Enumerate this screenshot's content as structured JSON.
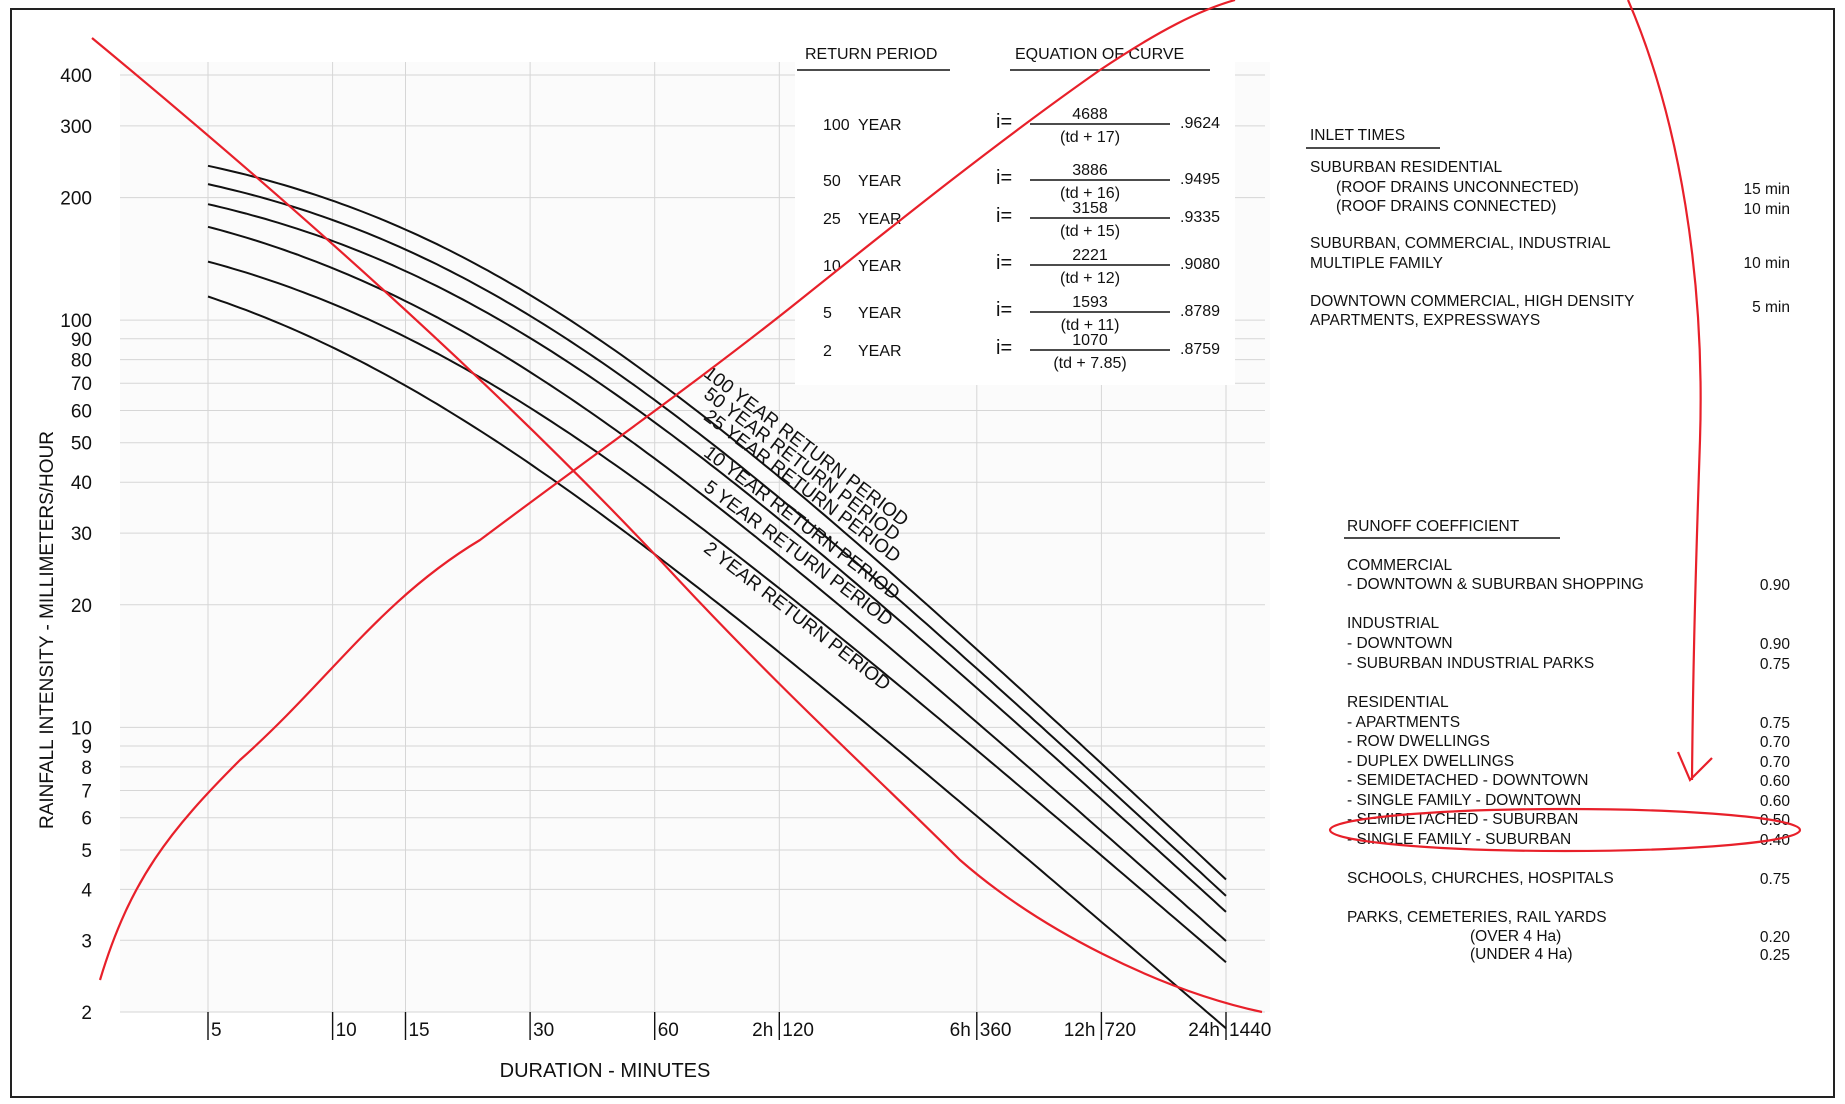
{
  "chart_data": {
    "type": "line",
    "xlabel": "DURATION - MINUTES",
    "ylabel": "RAINFALL INTENSITY - MILLIMETERS/HOUR",
    "x_scale": "log",
    "y_scale": "log",
    "xlim": [
      5,
      1440
    ],
    "ylim": [
      2,
      400
    ],
    "x_ticks": [
      {
        "value": 5,
        "label": "5"
      },
      {
        "value": 10,
        "label": "10"
      },
      {
        "value": 15,
        "label": "15"
      },
      {
        "value": 30,
        "label": "30"
      },
      {
        "value": 60,
        "label": "60"
      },
      {
        "value": 120,
        "label": "120"
      },
      {
        "value": 360,
        "label": "360"
      },
      {
        "value": 720,
        "label": "720"
      },
      {
        "value": 1440,
        "label": "1440"
      }
    ],
    "x_hour_labels": [
      {
        "value": 120,
        "label": "2h"
      },
      {
        "value": 360,
        "label": "6h"
      },
      {
        "value": 720,
        "label": "12h"
      },
      {
        "value": 1440,
        "label": "24h"
      }
    ],
    "y_ticks": [
      2,
      3,
      4,
      5,
      6,
      7,
      8,
      9,
      10,
      20,
      30,
      40,
      50,
      60,
      70,
      80,
      90,
      100,
      200,
      300,
      400
    ],
    "grid": true,
    "equation_form": "i = a / (td + b)^c",
    "series": [
      {
        "name": "100 YEAR RETURN PERIOD",
        "a": 4688,
        "b": 17,
        "c": 0.9624
      },
      {
        "name": "50 YEAR RETURN PERIOD",
        "a": 3886,
        "b": 16,
        "c": 0.9495
      },
      {
        "name": "25 YEAR RETURN PERIOD",
        "a": 3158,
        "b": 15,
        "c": 0.9335
      },
      {
        "name": "10 YEAR RETURN PERIOD",
        "a": 2221,
        "b": 12,
        "c": 0.908
      },
      {
        "name": "5 YEAR RETURN PERIOD",
        "a": 1593,
        "b": 11,
        "c": 0.8789
      },
      {
        "name": "2 YEAR RETURN PERIOD",
        "a": 1070,
        "b": 7.85,
        "c": 0.8759
      }
    ]
  },
  "equation_table": {
    "header_period": "RETURN PERIOD",
    "header_equation": "EQUATION OF CURVE",
    "rows": [
      {
        "num": "100",
        "unit": "YEAR",
        "prefix": "i=",
        "numerator": "4688",
        "denominator": "(td + 17)",
        "exponent": ".9624"
      },
      {
        "num": "50",
        "unit": "YEAR",
        "prefix": "i=",
        "numerator": "3886",
        "denominator": "(td + 16)",
        "exponent": ".9495"
      },
      {
        "num": "25",
        "unit": "YEAR",
        "prefix": "i=",
        "numerator": "3158",
        "denominator": "(td + 15)",
        "exponent": ".9335"
      },
      {
        "num": "10",
        "unit": "YEAR",
        "prefix": "i=",
        "numerator": "2221",
        "denominator": "(td + 12)",
        "exponent": ".9080"
      },
      {
        "num": "5",
        "unit": "YEAR",
        "prefix": "i=",
        "numerator": "1593",
        "denominator": "(td + 11)",
        "exponent": ".8789"
      },
      {
        "num": "2",
        "unit": "YEAR",
        "prefix": "i=",
        "numerator": "1070",
        "denominator": "(td + 7.85)",
        "exponent": ".8759"
      }
    ]
  },
  "inlet_times": {
    "title": "INLET TIMES",
    "lines": [
      {
        "text": "SUBURBAN RESIDENTIAL",
        "value": "",
        "indent": false
      },
      {
        "text": "(ROOF DRAINS UNCONNECTED)",
        "value": "15 min",
        "indent": true
      },
      {
        "text": "(ROOF DRAINS CONNECTED)",
        "value": "10 min",
        "indent": true
      },
      {
        "text": "SUBURBAN, COMMERCIAL, INDUSTRIAL",
        "value": "",
        "indent": false
      },
      {
        "text": "MULTIPLE FAMILY",
        "value": "10 min",
        "indent": false
      },
      {
        "text": "DOWNTOWN COMMERCIAL, HIGH DENSITY",
        "value": "5 min",
        "indent": false
      },
      {
        "text": "APARTMENTS, EXPRESSWAYS",
        "value": "",
        "indent": false
      }
    ]
  },
  "runoff": {
    "title": "RUNOFF COEFFICIENT",
    "lines": [
      {
        "text": "COMMERCIAL",
        "value": ""
      },
      {
        "text": "- DOWNTOWN & SUBURBAN SHOPPING",
        "value": "0.90"
      },
      {
        "text": "INDUSTRIAL",
        "value": ""
      },
      {
        "text": "- DOWNTOWN",
        "value": "0.90"
      },
      {
        "text": "- SUBURBAN INDUSTRIAL PARKS",
        "value": "0.75"
      },
      {
        "text": "RESIDENTIAL",
        "value": ""
      },
      {
        "text": "- APARTMENTS",
        "value": "0.75"
      },
      {
        "text": "- ROW DWELLINGS",
        "value": "0.70"
      },
      {
        "text": "- DUPLEX DWELLINGS",
        "value": "0.70"
      },
      {
        "text": "- SEMIDETACHED - DOWNTOWN",
        "value": "0.60"
      },
      {
        "text": "- SINGLE FAMILY - DOWNTOWN",
        "value": "0.60"
      },
      {
        "text": "- SEMIDETACHED - SUBURBAN",
        "value": "0.50"
      },
      {
        "text": "- SINGLE FAMILY - SUBURBAN",
        "value": "0.40"
      },
      {
        "text": "SCHOOLS, CHURCHES, HOSPITALS",
        "value": "0.75"
      },
      {
        "text": "PARKS, CEMETERIES, RAIL YARDS",
        "value": ""
      },
      {
        "text": "(OVER 4 Ha)",
        "value": "0.20"
      },
      {
        "text": "(UNDER 4 Ha)",
        "value": "0.25"
      }
    ]
  },
  "colors": {
    "ink": "#111111",
    "annotation": "#e8202a",
    "grid": "#d6d6d6"
  }
}
